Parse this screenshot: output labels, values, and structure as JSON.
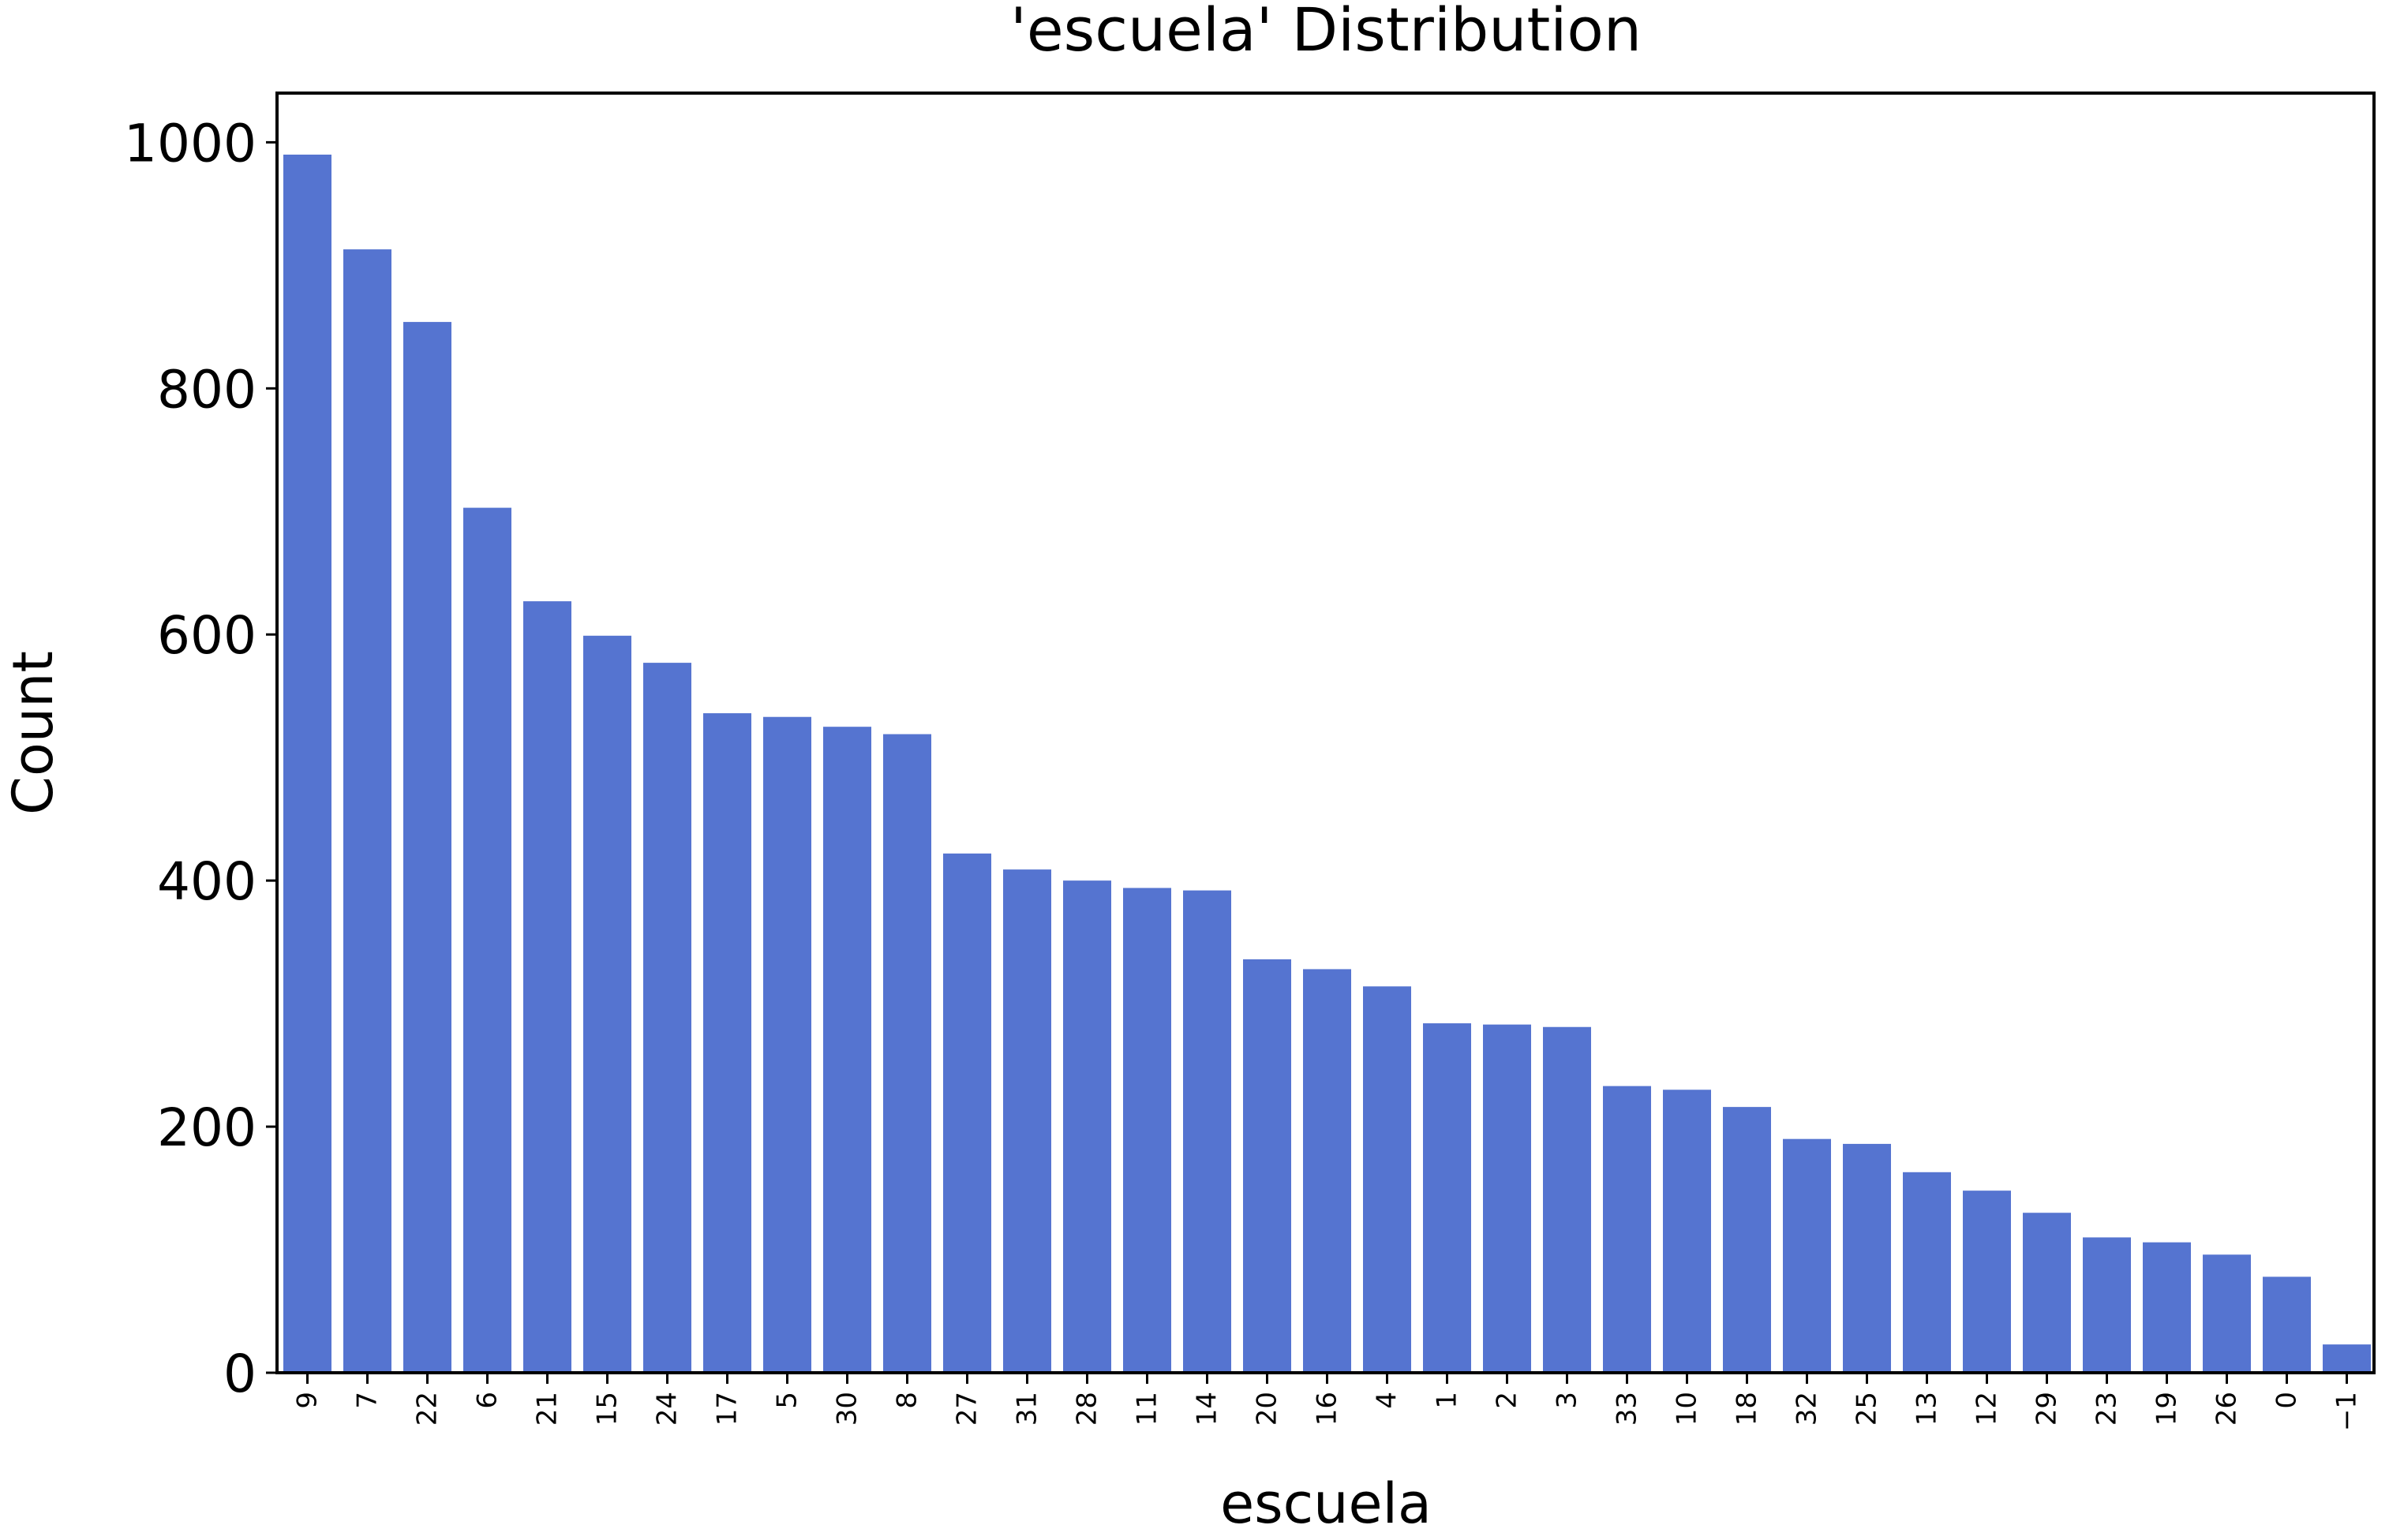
{
  "chart_data": {
    "type": "bar",
    "title": "'escuela' Distribution",
    "xlabel": "escuela",
    "ylabel": "Count",
    "ylim": [
      0,
      1040
    ],
    "yticks": [
      0,
      200,
      400,
      600,
      800,
      1000
    ],
    "grid": false,
    "legend": "none",
    "bar_color": "#5574D0",
    "categories": [
      "9",
      "7",
      "22",
      "6",
      "21",
      "15",
      "24",
      "17",
      "5",
      "30",
      "8",
      "27",
      "31",
      "28",
      "11",
      "14",
      "20",
      "16",
      "4",
      "1",
      "2",
      "3",
      "33",
      "10",
      "18",
      "32",
      "25",
      "13",
      "12",
      "29",
      "23",
      "19",
      "26",
      "0",
      "−1"
    ],
    "values": [
      990,
      913,
      854,
      703,
      627,
      599,
      577,
      536,
      533,
      525,
      519,
      422,
      409,
      400,
      394,
      392,
      336,
      328,
      314,
      284,
      283,
      281,
      233,
      230,
      216,
      190,
      186,
      163,
      148,
      130,
      110,
      106,
      96,
      78,
      23
    ]
  }
}
